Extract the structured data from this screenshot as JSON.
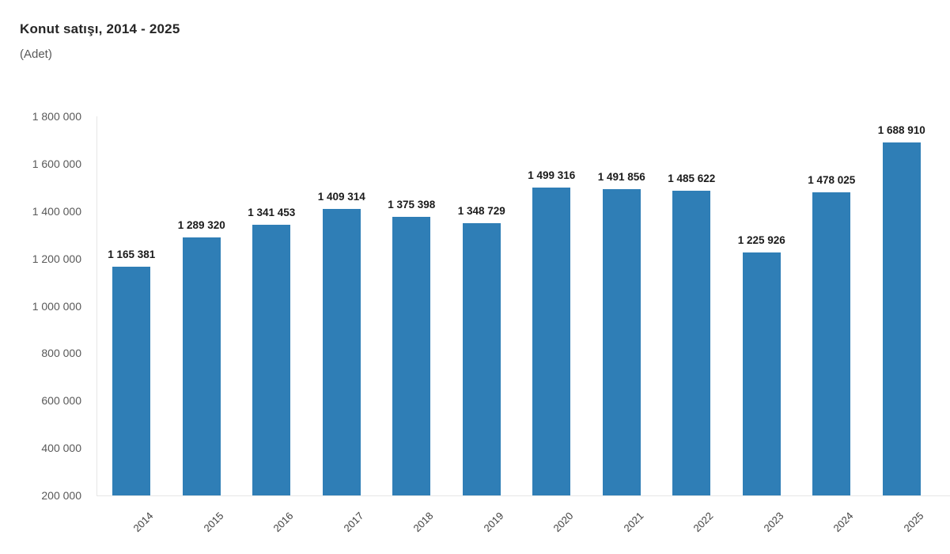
{
  "header": {
    "title": "Konut satışı, 2014 - 2025",
    "subtitle": "(Adet)"
  },
  "colors": {
    "bar": "#2f7eb6",
    "axis_line": "#e6e6e6",
    "title_text": "#262626",
    "subtitle_text": "#595959",
    "y_tick_text": "#595959",
    "x_tick_text": "#404040",
    "value_label_text": "#1a1a1a"
  },
  "chart_data": {
    "type": "bar",
    "title": "Konut satışı, 2014 - 2025",
    "subtitle": "(Adet)",
    "xlabel": "",
    "ylabel": "",
    "categories": [
      "2014",
      "2015",
      "2016",
      "2017",
      "2018",
      "2019",
      "2020",
      "2021",
      "2022",
      "2023",
      "2024",
      "2025"
    ],
    "values": [
      1165381,
      1289320,
      1341453,
      1409314,
      1375398,
      1348729,
      1499316,
      1491856,
      1485622,
      1225926,
      1478025,
      1688910
    ],
    "value_labels": [
      "1 165 381",
      "1 289 320",
      "1 341 453",
      "1 409 314",
      "1 375 398",
      "1 348 729",
      "1 499 316",
      "1 491 856",
      "1 485 622",
      "1 225 926",
      "1 478 025",
      "1 688 910"
    ],
    "ylim": [
      200000,
      1800000
    ],
    "ytick_values": [
      1800000,
      1600000,
      1400000,
      1200000,
      1000000,
      800000,
      600000,
      400000,
      200000
    ],
    "ytick_labels": [
      "1 800 000",
      "1 600 000",
      "1 400 000",
      "1 200 000",
      "1 000 000",
      "800 000",
      "600 000",
      "400 000",
      "200 000"
    ],
    "grid": false,
    "legend": "none",
    "bar_color": "#2f7eb6",
    "axis_line_color": "#e6e6e6"
  }
}
